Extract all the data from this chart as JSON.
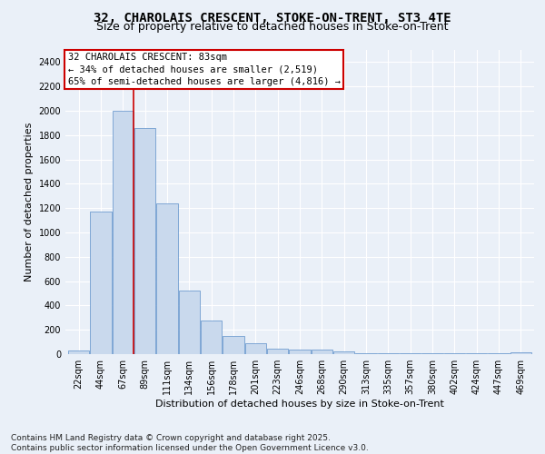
{
  "title": "32, CHAROLAIS CRESCENT, STOKE-ON-TRENT, ST3 4TE",
  "subtitle": "Size of property relative to detached houses in Stoke-on-Trent",
  "xlabel": "Distribution of detached houses by size in Stoke-on-Trent",
  "ylabel": "Number of detached properties",
  "categories": [
    "22sqm",
    "44sqm",
    "67sqm",
    "89sqm",
    "111sqm",
    "134sqm",
    "156sqm",
    "178sqm",
    "201sqm",
    "223sqm",
    "246sqm",
    "268sqm",
    "290sqm",
    "313sqm",
    "335sqm",
    "357sqm",
    "380sqm",
    "402sqm",
    "424sqm",
    "447sqm",
    "469sqm"
  ],
  "values": [
    30,
    1170,
    2000,
    1860,
    1240,
    520,
    275,
    150,
    90,
    45,
    40,
    35,
    20,
    10,
    5,
    5,
    5,
    5,
    5,
    5,
    15
  ],
  "bar_color": "#c9d9ed",
  "bar_edge_color": "#5b8fc9",
  "background_color": "#eaf0f8",
  "grid_color": "#ffffff",
  "vline_x": 2.5,
  "vline_color": "#cc0000",
  "annotation_line1": "32 CHAROLAIS CRESCENT: 83sqm",
  "annotation_line2": "← 34% of detached houses are smaller (2,519)",
  "annotation_line3": "65% of semi-detached houses are larger (4,816) →",
  "annotation_box_color": "#ffffff",
  "annotation_box_edge": "#cc0000",
  "ylim": [
    0,
    2500
  ],
  "yticks": [
    0,
    200,
    400,
    600,
    800,
    1000,
    1200,
    1400,
    1600,
    1800,
    2000,
    2200,
    2400
  ],
  "footer1": "Contains HM Land Registry data © Crown copyright and database right 2025.",
  "footer2": "Contains public sector information licensed under the Open Government Licence v3.0.",
  "title_fontsize": 10,
  "subtitle_fontsize": 9,
  "axis_label_fontsize": 8,
  "tick_fontsize": 7,
  "annotation_fontsize": 7.5,
  "footer_fontsize": 6.5
}
